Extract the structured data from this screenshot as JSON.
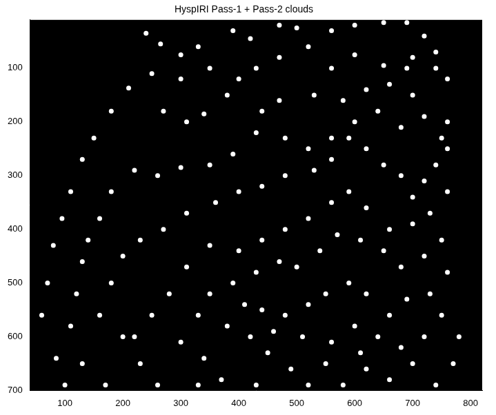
{
  "chart_data": {
    "type": "scatter",
    "title": "HyspIRI Pass-1 + Pass-2 clouds",
    "x": [
      240,
      265,
      300,
      330,
      390,
      420,
      470,
      500,
      560,
      600,
      650,
      690,
      720,
      740,
      700,
      690,
      740,
      760,
      650,
      600,
      560,
      520,
      470,
      430,
      400,
      350,
      300,
      250,
      210,
      180,
      150,
      130,
      110,
      95,
      80,
      70,
      60,
      85,
      100,
      270,
      310,
      340,
      380,
      440,
      470,
      530,
      580,
      620,
      660,
      700,
      760,
      750,
      720,
      680,
      640,
      600,
      560,
      520,
      480,
      430,
      390,
      350,
      300,
      260,
      220,
      180,
      160,
      140,
      130,
      120,
      110,
      130,
      170,
      760,
      740,
      720,
      700,
      680,
      650,
      620,
      590,
      560,
      530,
      480,
      440,
      400,
      360,
      310,
      270,
      230,
      200,
      180,
      160,
      200,
      230,
      260,
      760,
      730,
      700,
      660,
      620,
      590,
      560,
      520,
      480,
      440,
      400,
      350,
      310,
      280,
      250,
      220,
      300,
      340,
      370,
      750,
      720,
      680,
      650,
      610,
      570,
      540,
      500,
      470,
      430,
      390,
      350,
      330,
      380,
      420,
      450,
      490,
      520,
      760,
      730,
      690,
      660,
      620,
      590,
      550,
      520,
      480,
      440,
      410,
      460,
      510,
      560,
      600,
      640,
      680,
      720,
      750,
      700,
      740,
      660,
      620,
      580,
      550,
      610,
      430,
      330,
      780,
      770
    ],
    "values": [
      35,
      55,
      75,
      60,
      30,
      45,
      20,
      25,
      30,
      20,
      15,
      15,
      40,
      70,
      80,
      100,
      100,
      120,
      95,
      75,
      100,
      60,
      80,
      100,
      120,
      100,
      120,
      110,
      137,
      180,
      230,
      270,
      330,
      380,
      430,
      500,
      560,
      640,
      690,
      180,
      200,
      185,
      150,
      180,
      160,
      150,
      160,
      140,
      130,
      150,
      200,
      230,
      190,
      210,
      180,
      200,
      230,
      250,
      230,
      220,
      260,
      280,
      285,
      300,
      290,
      330,
      380,
      420,
      460,
      520,
      580,
      650,
      690,
      250,
      280,
      310,
      340,
      300,
      280,
      250,
      230,
      270,
      290,
      300,
      320,
      330,
      350,
      370,
      400,
      420,
      450,
      500,
      560,
      600,
      650,
      690,
      330,
      370,
      390,
      400,
      360,
      330,
      350,
      380,
      400,
      420,
      440,
      430,
      470,
      520,
      560,
      600,
      610,
      640,
      680,
      420,
      450,
      470,
      440,
      420,
      410,
      440,
      470,
      460,
      480,
      500,
      520,
      560,
      580,
      600,
      630,
      660,
      690,
      480,
      520,
      530,
      560,
      520,
      500,
      520,
      540,
      560,
      550,
      540,
      590,
      600,
      610,
      580,
      600,
      620,
      600,
      560,
      650,
      690,
      680,
      660,
      690,
      650,
      630,
      690,
      690,
      600,
      650
    ],
    "color": "#ffffff",
    "marker": "circle",
    "xlim": [
      40,
      820
    ],
    "ylim": [
      700,
      10
    ],
    "xticks": [
      100,
      200,
      300,
      400,
      500,
      600,
      700,
      800
    ],
    "yticks": [
      100,
      200,
      300,
      400,
      500,
      600,
      700
    ],
    "grid": false
  }
}
